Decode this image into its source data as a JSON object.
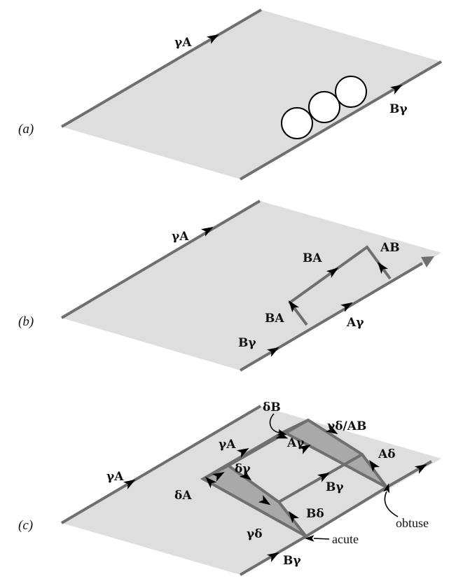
{
  "panels": {
    "a": {
      "tag": "(a)",
      "labels": {
        "top_edge": "γA",
        "bottom_edge": "Bγ"
      }
    },
    "b": {
      "tag": "(b)",
      "labels": {
        "top_edge": "γA",
        "ba_upper": "BA",
        "ab": "AB",
        "ba_lower": "BA",
        "a_gamma": "Aγ",
        "b_gamma": "Bγ"
      }
    },
    "c": {
      "tag": "(c)",
      "labels": {
        "delta_b": "δB",
        "gd_ab": "γδ/AB",
        "gamma_a_left": "γA",
        "gamma_a_inner": "γA",
        "a_gamma": "Aγ",
        "a_delta": "Aδ",
        "delta_gamma": "δγ",
        "b_gamma_mid": "Bγ",
        "delta_a": "δA",
        "b_delta": "Bδ",
        "gamma_delta": "γδ",
        "b_gamma_bottom": "Bγ",
        "obtuse": "obtuse",
        "acute": "acute"
      }
    }
  }
}
